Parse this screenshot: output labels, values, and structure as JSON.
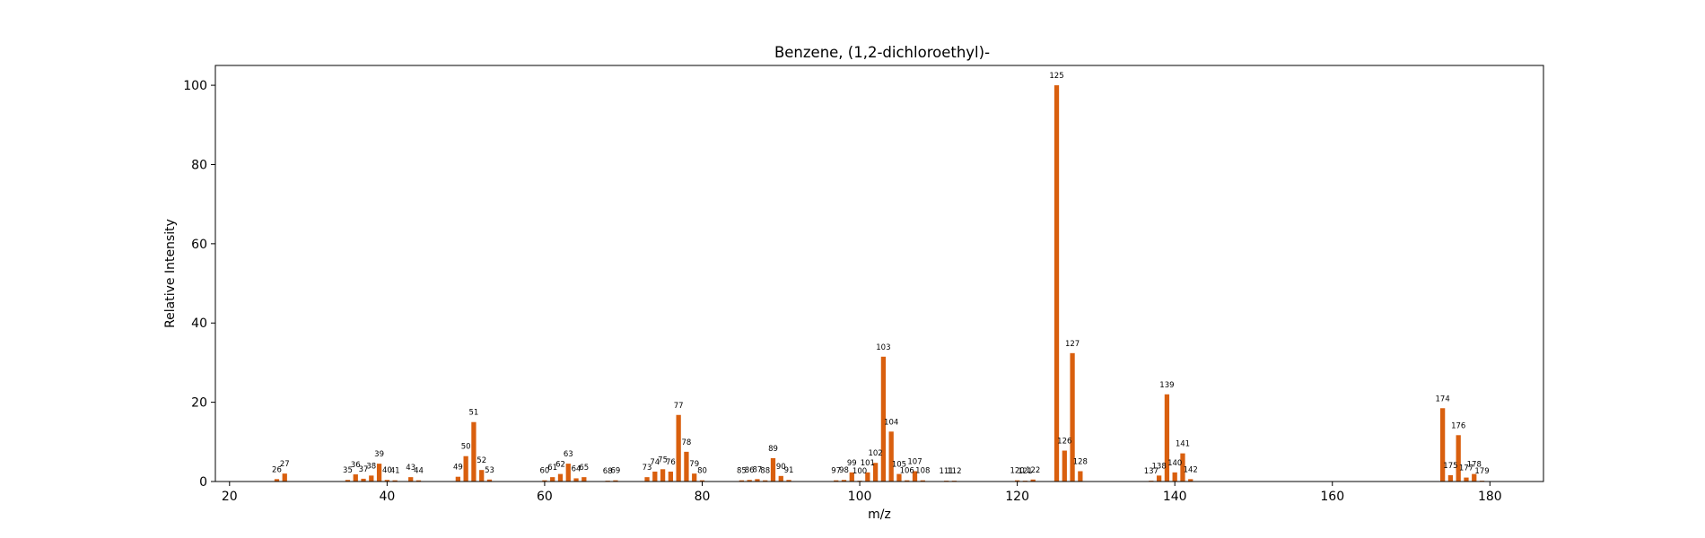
{
  "chart_data": {
    "type": "bar",
    "title": "Benzene, (1,2-dichloroethyl)-",
    "xlabel": "m/z",
    "ylabel": "Relative Intensity",
    "xlim": [
      18.2,
      186.8
    ],
    "ylim": [
      0,
      105
    ],
    "xticks": [
      20,
      40,
      60,
      80,
      100,
      120,
      140,
      160,
      180
    ],
    "yticks": [
      0,
      20,
      40,
      60,
      80,
      100
    ],
    "grid": false,
    "bar_color": "#d95f0e",
    "peaks": [
      {
        "mz": 26,
        "intensity": 0.6
      },
      {
        "mz": 27,
        "intensity": 2.0
      },
      {
        "mz": 35,
        "intensity": 0.4
      },
      {
        "mz": 36,
        "intensity": 1.8
      },
      {
        "mz": 37,
        "intensity": 0.7
      },
      {
        "mz": 38,
        "intensity": 1.5
      },
      {
        "mz": 39,
        "intensity": 4.5
      },
      {
        "mz": 40,
        "intensity": 0.4
      },
      {
        "mz": 41,
        "intensity": 0.3
      },
      {
        "mz": 43,
        "intensity": 1.1
      },
      {
        "mz": 44,
        "intensity": 0.3
      },
      {
        "mz": 49,
        "intensity": 1.2
      },
      {
        "mz": 50,
        "intensity": 6.4
      },
      {
        "mz": 51,
        "intensity": 15.0
      },
      {
        "mz": 52,
        "intensity": 2.9
      },
      {
        "mz": 53,
        "intensity": 0.5
      },
      {
        "mz": 60,
        "intensity": 0.3
      },
      {
        "mz": 61,
        "intensity": 1.1
      },
      {
        "mz": 62,
        "intensity": 1.9
      },
      {
        "mz": 63,
        "intensity": 4.5
      },
      {
        "mz": 64,
        "intensity": 0.8
      },
      {
        "mz": 65,
        "intensity": 1.1
      },
      {
        "mz": 68,
        "intensity": 0.2
      },
      {
        "mz": 69,
        "intensity": 0.3
      },
      {
        "mz": 73,
        "intensity": 1.1
      },
      {
        "mz": 74,
        "intensity": 2.5
      },
      {
        "mz": 75,
        "intensity": 3.1
      },
      {
        "mz": 76,
        "intensity": 2.5
      },
      {
        "mz": 77,
        "intensity": 16.8
      },
      {
        "mz": 78,
        "intensity": 7.5
      },
      {
        "mz": 79,
        "intensity": 2.0
      },
      {
        "mz": 80,
        "intensity": 0.3
      },
      {
        "mz": 85,
        "intensity": 0.3
      },
      {
        "mz": 86,
        "intensity": 0.4
      },
      {
        "mz": 87,
        "intensity": 0.6
      },
      {
        "mz": 88,
        "intensity": 0.3
      },
      {
        "mz": 89,
        "intensity": 5.9
      },
      {
        "mz": 90,
        "intensity": 1.4
      },
      {
        "mz": 91,
        "intensity": 0.4
      },
      {
        "mz": 97,
        "intensity": 0.3
      },
      {
        "mz": 98,
        "intensity": 0.4
      },
      {
        "mz": 99,
        "intensity": 2.3
      },
      {
        "mz": 100,
        "intensity": 0.2
      },
      {
        "mz": 101,
        "intensity": 2.3
      },
      {
        "mz": 102,
        "intensity": 4.7
      },
      {
        "mz": 103,
        "intensity": 31.5
      },
      {
        "mz": 104,
        "intensity": 12.6
      },
      {
        "mz": 105,
        "intensity": 1.9
      },
      {
        "mz": 106,
        "intensity": 0.3
      },
      {
        "mz": 107,
        "intensity": 2.6
      },
      {
        "mz": 108,
        "intensity": 0.3
      },
      {
        "mz": 111,
        "intensity": 0.2
      },
      {
        "mz": 112,
        "intensity": 0.2
      },
      {
        "mz": 120,
        "intensity": 0.3
      },
      {
        "mz": 121,
        "intensity": 0.2
      },
      {
        "mz": 122,
        "intensity": 0.5
      },
      {
        "mz": 125,
        "intensity": 100.0
      },
      {
        "mz": 126,
        "intensity": 7.8
      },
      {
        "mz": 127,
        "intensity": 32.4
      },
      {
        "mz": 128,
        "intensity": 2.6
      },
      {
        "mz": 137,
        "intensity": 0.2
      },
      {
        "mz": 138,
        "intensity": 1.5
      },
      {
        "mz": 139,
        "intensity": 22.0
      },
      {
        "mz": 140,
        "intensity": 2.3
      },
      {
        "mz": 141,
        "intensity": 7.1
      },
      {
        "mz": 142,
        "intensity": 0.6
      },
      {
        "mz": 174,
        "intensity": 18.5
      },
      {
        "mz": 175,
        "intensity": 1.6
      },
      {
        "mz": 176,
        "intensity": 11.7
      },
      {
        "mz": 177,
        "intensity": 1.0
      },
      {
        "mz": 178,
        "intensity": 1.9
      },
      {
        "mz": 179,
        "intensity": 0.2
      }
    ]
  }
}
